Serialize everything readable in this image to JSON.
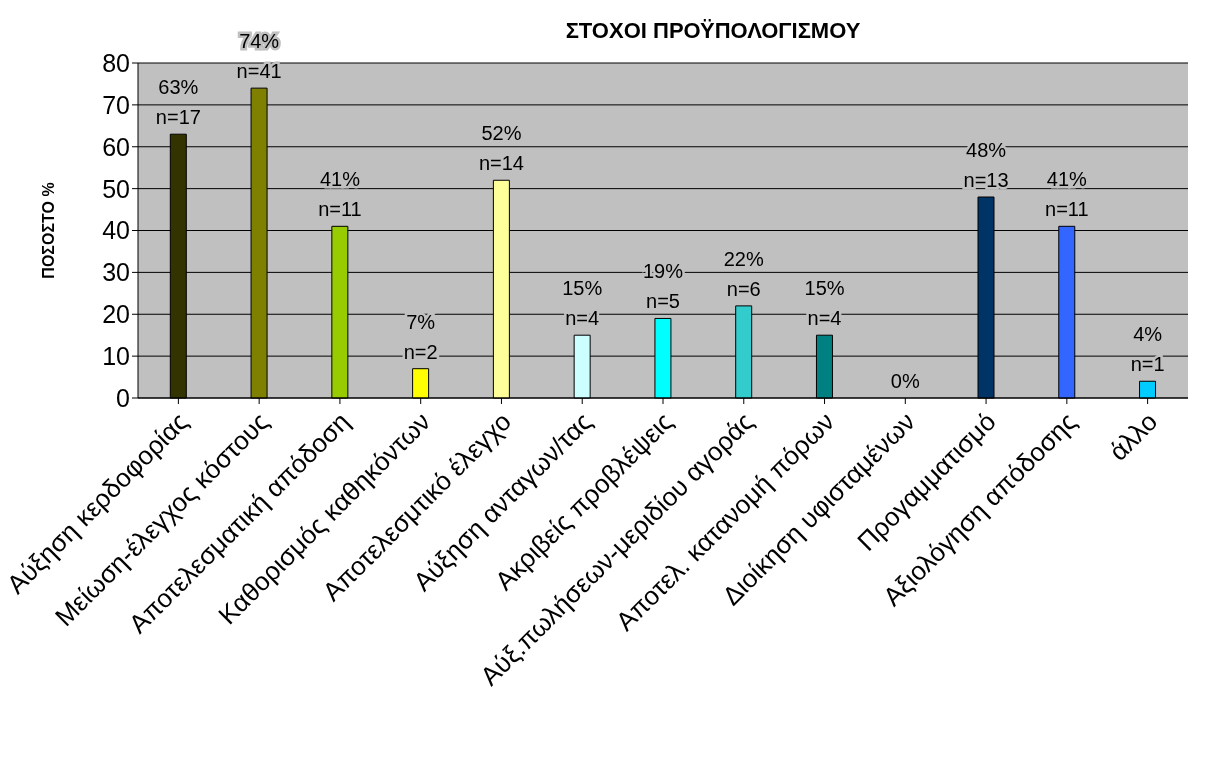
{
  "chart_data": {
    "type": "bar",
    "title": "ΣΤΟΧΟΙ ΠΡΟΫΠΟΛΟΓΙΣΜΟΥ",
    "ylabel": "ΠΟΣΟΣΤΟ %",
    "categories": [
      "Αύξηση κερδοφορίας",
      "Μείωση-έλεγχος κόστους",
      "Αποτελεσματική απόδοση",
      "Καθορισμός καθηκόντων",
      "Αποτελεσμτικό έλεγχο",
      "Αύξηση ανταγων/τας",
      "Ακριβείς προβλέψεις",
      "Αύξ.πωλήσεων-μεριδίου αγοράς",
      "Αποτελ. κατανομή πόρων",
      "Διοίκηση υφισταμένων",
      "Προγαμματισμό",
      "Αξιολόγηση απόδοσης",
      "άλλο"
    ],
    "values": [
      63,
      74,
      41,
      7,
      52,
      15,
      19,
      22,
      15,
      0,
      48,
      41,
      4
    ],
    "colors": [
      "#333300",
      "#808000",
      "#99cc00",
      "#ffff00",
      "#ffff99",
      "#ccffff",
      "#00ffff",
      "#33cccc",
      "#008080",
      "#808080",
      "#003366",
      "#3366ff",
      "#00ccff"
    ],
    "value_labels": [
      "63%\nn=17",
      "74%\nn=41",
      "41%\nn=11",
      "7%\nn=2",
      "52%\nn=14",
      "15%\nn=4",
      "19%\nn=5",
      "22%\nn=6",
      "15%\nn=4",
      "0%",
      "48%\nn=13",
      "41%\nn=11",
      "4%\nn=1"
    ],
    "ylim": [
      0,
      80
    ],
    "yticks": [
      0,
      10,
      20,
      30,
      40,
      50,
      60,
      70,
      80
    ],
    "grid": "y"
  }
}
